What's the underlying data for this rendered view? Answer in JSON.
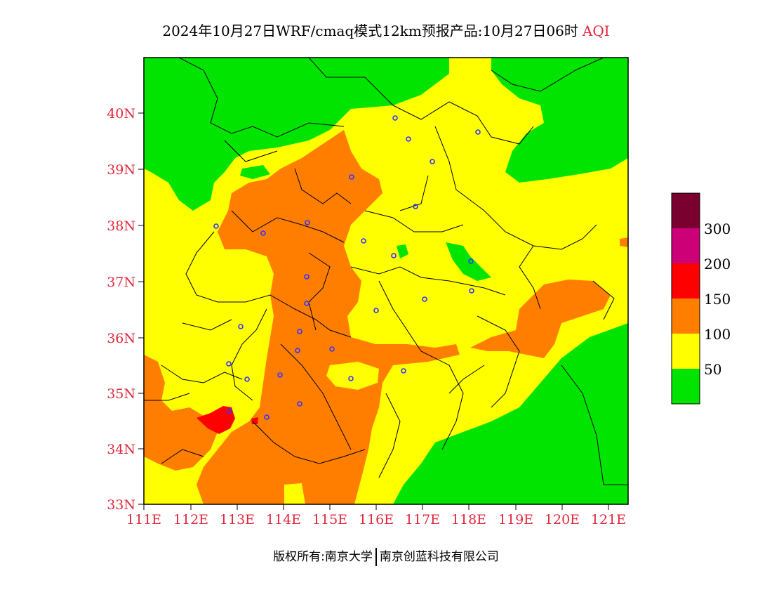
{
  "title": {
    "main": "2024年10月27日WRF/cmaq模式12km预报产品:10月27日06时",
    "variable": "AQI"
  },
  "map": {
    "latitude_labels": [
      "40N",
      "39N",
      "38N",
      "37N",
      "36N",
      "35N",
      "34N",
      "33N"
    ],
    "longitude_labels": [
      "111E",
      "112E",
      "113E",
      "114E",
      "115E",
      "116E",
      "117E",
      "118E",
      "119E",
      "120E",
      "121E"
    ]
  },
  "legend": {
    "labels": [
      "300",
      "200",
      "150",
      "100",
      "50"
    ],
    "colors": [
      "#7a0030",
      "#cc0077",
      "#ff0000",
      "#ff7e00",
      "#ffff00",
      "#00e400"
    ]
  },
  "footer": {
    "copyright": "版权所有:南京大学",
    "company": "南京创蓝科技有限公司"
  }
}
